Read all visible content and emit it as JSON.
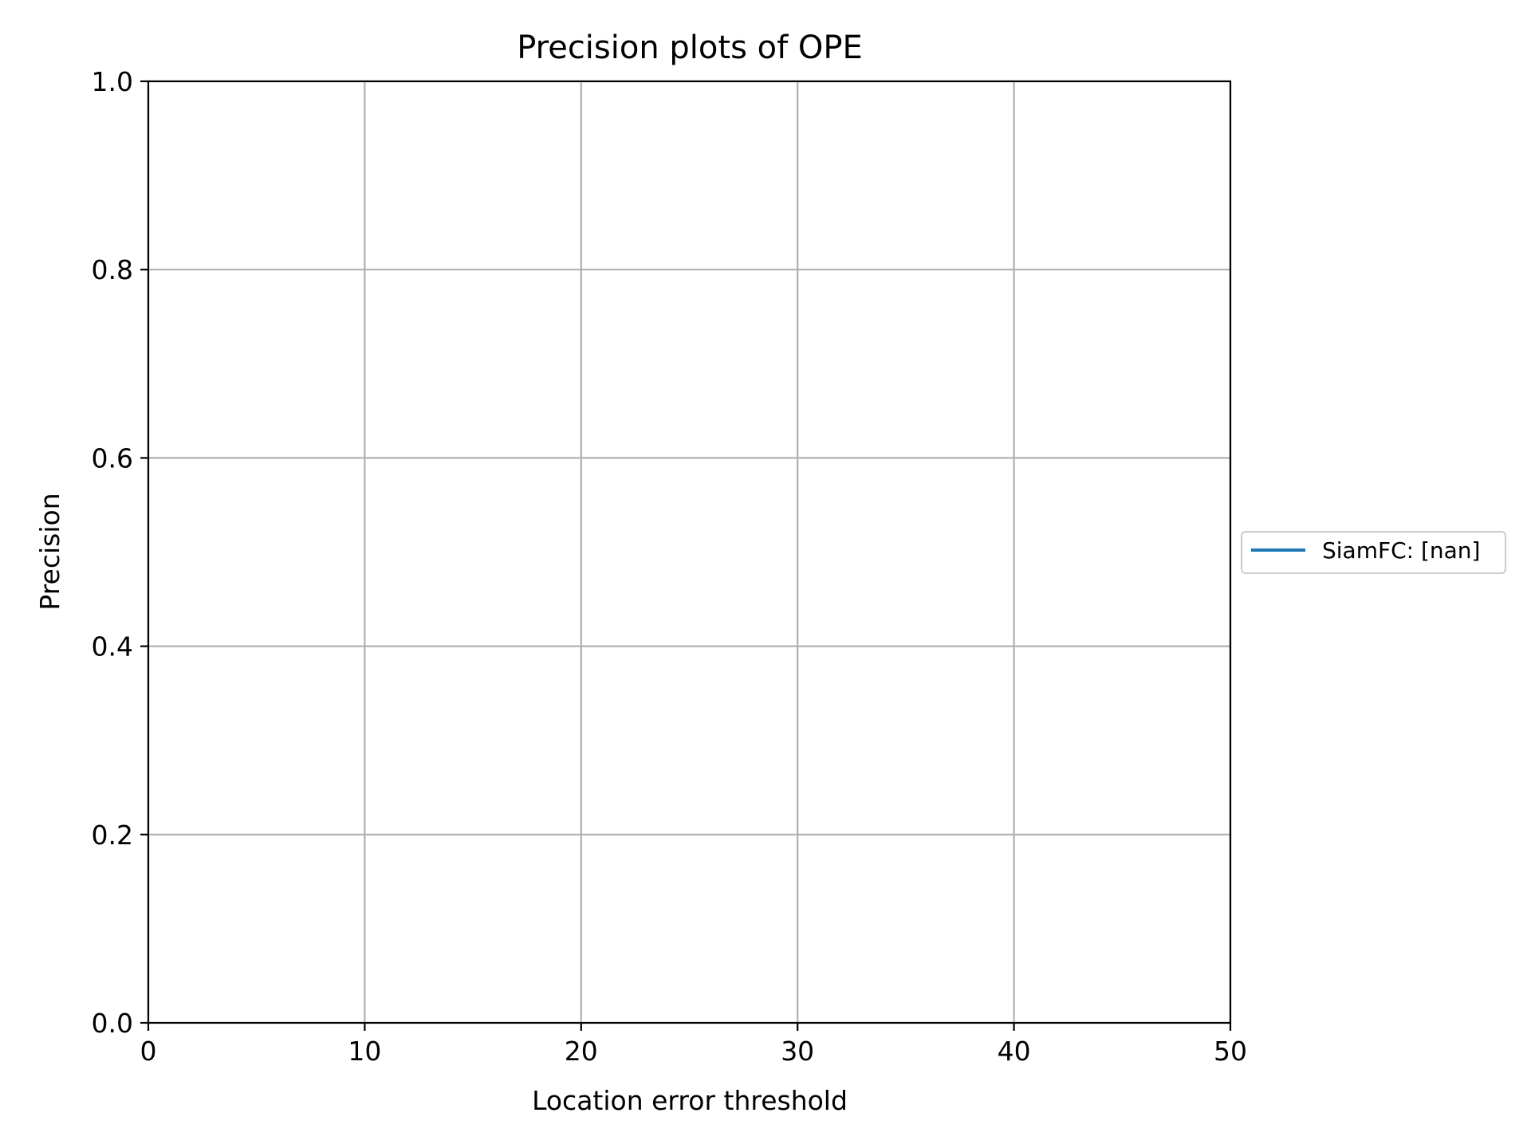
{
  "chart_data": {
    "type": "line",
    "title": "Precision plots of OPE",
    "xlabel": "Location error threshold",
    "ylabel": "Precision",
    "xlim": [
      0,
      50
    ],
    "ylim": [
      0,
      1
    ],
    "xticks": [
      0,
      10,
      20,
      30,
      40,
      50
    ],
    "xtick_labels": [
      "0",
      "10",
      "20",
      "30",
      "40",
      "50"
    ],
    "yticks": [
      0,
      0.2,
      0.4,
      0.6,
      0.8,
      1.0
    ],
    "ytick_labels": [
      "0.0",
      "0.2",
      "0.4",
      "0.6",
      "0.8",
      "1.0"
    ],
    "grid": true,
    "legend_position": "center-right, outside plot",
    "series": [
      {
        "name": "SiamFC: [nan]",
        "color": "#1f77b4",
        "x": [],
        "y": []
      }
    ]
  }
}
